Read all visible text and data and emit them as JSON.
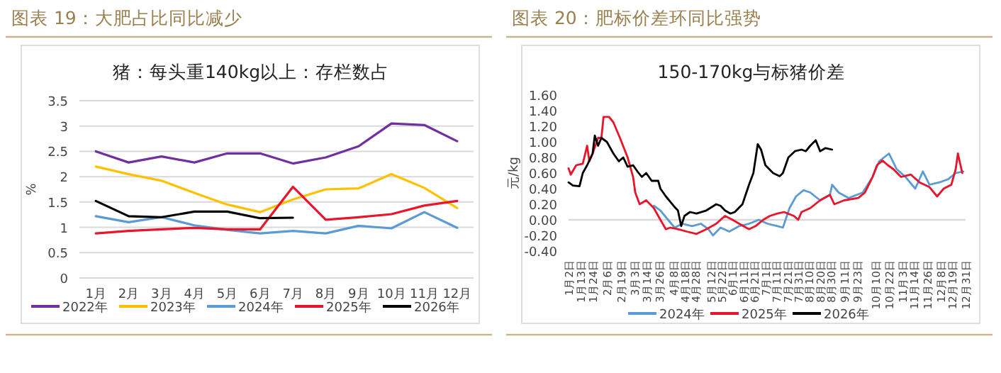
{
  "chart_data": [
    {
      "type": "line",
      "title": "图表 19：大肥占比同比减少",
      "subtitle": "猪：每头重140kg以上：存栏数占",
      "ylabel": "%",
      "categories": [
        "1月",
        "2月",
        "3月",
        "4月",
        "5月",
        "6月",
        "7月",
        "8月",
        "9月",
        "10月",
        "11月",
        "12月"
      ],
      "ylim": [
        0,
        3.5
      ],
      "yticks": [
        0,
        0.5,
        1,
        1.5,
        2,
        2.5,
        3,
        3.5
      ],
      "grid": "y",
      "legend": "bottom",
      "series": [
        {
          "name": "2022年",
          "color": "#7030a0",
          "values": [
            2.5,
            2.28,
            2.4,
            2.28,
            2.46,
            2.46,
            2.26,
            2.38,
            2.6,
            3.05,
            3.02,
            2.7
          ]
        },
        {
          "name": "2023年",
          "color": "#ffc000",
          "values": [
            2.2,
            2.05,
            1.92,
            1.68,
            1.45,
            1.3,
            1.55,
            1.75,
            1.77,
            2.05,
            1.78,
            1.38
          ]
        },
        {
          "name": "2024年",
          "color": "#5b9bd5",
          "values": [
            1.22,
            1.1,
            1.2,
            1.04,
            0.95,
            0.88,
            0.93,
            0.88,
            1.03,
            0.98,
            1.3,
            0.99
          ]
        },
        {
          "name": "2025年",
          "color": "#e8152b",
          "values": [
            0.88,
            0.93,
            0.96,
            0.99,
            0.96,
            0.96,
            1.8,
            1.15,
            1.2,
            1.26,
            1.43,
            1.52
          ]
        },
        {
          "name": "2026年",
          "color": "#000000",
          "values": [
            1.52,
            1.22,
            1.2,
            1.31,
            1.31,
            1.18,
            1.19,
            null,
            null,
            null,
            null,
            null
          ]
        }
      ]
    },
    {
      "type": "line",
      "title": "图表 20：肥标价差环同比强势",
      "subtitle": "150-170kg与标猪价差",
      "ylabel": "元/kg",
      "xlim": [
        "--01-02",
        "--12-31"
      ],
      "ylim": [
        -0.4,
        1.6
      ],
      "yticks": [
        {
          "value": -0.4,
          "label": "-0.40"
        },
        {
          "value": -0.2,
          "label": "-0.20"
        },
        {
          "value": 0,
          "label": "0.00"
        },
        {
          "value": 0.2,
          "label": "0.20"
        },
        {
          "value": 0.4,
          "label": "0.40"
        },
        {
          "value": 0.6,
          "label": "0.60"
        },
        {
          "value": 0.8,
          "label": "0.80"
        },
        {
          "value": 1.0,
          "label": "1.00"
        },
        {
          "value": 1.2,
          "label": "1.20"
        },
        {
          "value": 1.4,
          "label": "1.40"
        },
        {
          "value": 1.6,
          "label": "1.60"
        }
      ],
      "xticks": [
        {
          "value": "--01-02",
          "label": "1月2日"
        },
        {
          "value": "--01-13",
          "label": "1月13日"
        },
        {
          "value": "--01-24",
          "label": "1月24日"
        },
        {
          "value": "--02-06",
          "label": "2月6日"
        },
        {
          "value": "--02-19",
          "label": "2月19日"
        },
        {
          "value": "--03-03",
          "label": "3月3日"
        },
        {
          "value": "--03-14",
          "label": "3月14日"
        },
        {
          "value": "--03-26",
          "label": "3月26日"
        },
        {
          "value": "--04-08",
          "label": "4月8日"
        },
        {
          "value": "--04-18",
          "label": "4月18日"
        },
        {
          "value": "--04-28",
          "label": "4月28日"
        },
        {
          "value": "--05-12",
          "label": "5月12日"
        },
        {
          "value": "--05-22",
          "label": "5月22日"
        },
        {
          "value": "--06-01",
          "label": "6月1日"
        },
        {
          "value": "--06-11",
          "label": "6月11日"
        },
        {
          "value": "--06-21",
          "label": "6月21日"
        },
        {
          "value": "--07-01",
          "label": "7月1日"
        },
        {
          "value": "--07-11",
          "label": "7月11日"
        },
        {
          "value": "--07-21",
          "label": "7月21日"
        },
        {
          "value": "--07-31",
          "label": "7月31日"
        },
        {
          "value": "--08-10",
          "label": "8月10日"
        },
        {
          "value": "--08-20",
          "label": "8月20日"
        },
        {
          "value": "--08-30",
          "label": "8月30日"
        },
        {
          "value": "--09-11",
          "label": "9月11日"
        },
        {
          "value": "--09-23",
          "label": "9月23日"
        },
        {
          "value": "--10-10",
          "label": "10月10日"
        },
        {
          "value": "--10-22",
          "label": "10月22日"
        },
        {
          "value": "--11-03",
          "label": "11月3日"
        },
        {
          "value": "--11-14",
          "label": "11月14日"
        },
        {
          "value": "--11-26",
          "label": "11月26日"
        },
        {
          "value": "--12-08",
          "label": "12月8日"
        },
        {
          "value": "--12-19",
          "label": "12月19日"
        },
        {
          "value": "--12-31",
          "label": "12月31日"
        }
      ],
      "legend": "bottom",
      "series": [
        {
          "name": "2024年",
          "color": "#5b9bd5",
          "x": [
            "--03-21",
            "--03-27",
            "--04-03",
            "--04-09",
            "--04-16",
            "--04-25",
            "--05-03",
            "--05-10",
            "--05-14",
            "--05-21",
            "--05-29",
            "--06-07",
            "--06-16",
            "--06-25",
            "--07-03",
            "--07-12",
            "--07-17",
            "--07-23",
            "--07-29",
            "--08-05",
            "--08-11",
            "--08-20",
            "--08-29",
            "--08-31",
            "--09-06",
            "--09-15",
            "--09-28",
            "--10-07",
            "--10-13",
            "--10-22",
            "--10-29",
            "--11-06",
            "--11-15",
            "--11-22",
            "--11-28",
            "--12-07",
            "--12-15",
            "--12-22",
            "--12-29"
          ],
          "values": [
            0.18,
            0.12,
            0.0,
            -0.1,
            -0.05,
            -0.08,
            -0.05,
            -0.12,
            -0.2,
            -0.1,
            -0.15,
            -0.08,
            -0.05,
            0.0,
            -0.05,
            -0.08,
            -0.1,
            0.15,
            0.3,
            0.38,
            0.35,
            0.25,
            0.32,
            0.45,
            0.35,
            0.28,
            0.35,
            0.55,
            0.75,
            0.85,
            0.65,
            0.55,
            0.4,
            0.62,
            0.45,
            0.48,
            0.52,
            0.6,
            0.62
          ]
        },
        {
          "name": "2025年",
          "color": "#e8152b",
          "x": [
            "--01-02",
            "--01-04",
            "--01-09",
            "--01-15",
            "--01-19",
            "--01-21",
            "--01-24",
            "--01-29",
            "--02-01",
            "--02-03",
            "--02-08",
            "--02-12",
            "--02-18",
            "--02-25",
            "--03-02",
            "--03-04",
            "--03-08",
            "--03-14",
            "--03-21",
            "--03-27",
            "--04-01",
            "--04-05",
            "--04-12",
            "--04-20",
            "--04-29",
            "--05-08",
            "--05-17",
            "--05-25",
            "--06-01",
            "--06-07",
            "--06-16",
            "--06-22",
            "--06-29",
            "--07-05",
            "--07-12",
            "--07-18",
            "--07-27",
            "--07-31",
            "--08-03",
            "--08-11",
            "--08-20",
            "--08-29",
            "--09-02",
            "--09-11",
            "--09-24",
            "--09-30",
            "--10-07",
            "--10-11",
            "--10-16",
            "--10-21",
            "--10-26",
            "--11-02",
            "--11-11",
            "--11-19",
            "--11-28",
            "--12-05",
            "--12-11",
            "--12-18",
            "--12-22",
            "--12-24",
            "--12-28"
          ],
          "values": [
            0.66,
            0.58,
            0.7,
            0.72,
            0.95,
            0.75,
            0.85,
            1.05,
            1.05,
            1.32,
            1.32,
            1.25,
            1.05,
            0.8,
            0.55,
            0.35,
            0.2,
            0.25,
            0.15,
            0.0,
            -0.12,
            -0.1,
            -0.12,
            -0.15,
            -0.18,
            -0.12,
            -0.05,
            0.05,
            0.0,
            -0.05,
            -0.12,
            -0.08,
            0.0,
            0.05,
            0.08,
            0.1,
            0.05,
            0.0,
            0.1,
            0.15,
            0.25,
            0.32,
            0.2,
            0.25,
            0.28,
            0.35,
            0.55,
            0.7,
            0.76,
            0.7,
            0.65,
            0.55,
            0.58,
            0.48,
            0.42,
            0.3,
            0.4,
            0.45,
            0.65,
            0.85,
            0.6
          ]
        },
        {
          "name": "2026年",
          "color": "#000000",
          "x": [
            "--01-02",
            "--01-06",
            "--01-12",
            "--01-15",
            "--01-19",
            "--01-24",
            "--01-26",
            "--01-29",
            "--02-01",
            "--02-06",
            "--02-12",
            "--02-17",
            "--02-21",
            "--02-25",
            "--03-02",
            "--03-06",
            "--03-10",
            "--03-14",
            "--03-19",
            "--03-25",
            "--03-27",
            "--04-01",
            "--04-08",
            "--04-12",
            "--04-15",
            "--04-18",
            "--04-23",
            "--04-29",
            "--05-08",
            "--05-17",
            "--05-21",
            "--05-25",
            "--05-30",
            "--06-03",
            "--06-10",
            "--06-16",
            "--06-20",
            "--06-24",
            "--06-27",
            "--07-01",
            "--07-08",
            "--07-14",
            "--07-17",
            "--07-22",
            "--07-28",
            "--08-03",
            "--08-07",
            "--08-11",
            "--08-16",
            "--08-20",
            "--08-25",
            "--08-31"
          ],
          "values": [
            0.48,
            0.44,
            0.43,
            0.6,
            0.7,
            0.85,
            1.08,
            0.95,
            1.05,
            1.0,
            0.85,
            0.75,
            0.8,
            0.68,
            0.7,
            0.62,
            0.55,
            0.6,
            0.5,
            0.5,
            0.4,
            0.3,
            0.18,
            0.12,
            -0.08,
            0.05,
            0.1,
            0.08,
            0.12,
            0.2,
            0.18,
            0.12,
            0.08,
            0.1,
            0.2,
            0.45,
            0.6,
            0.97,
            0.9,
            0.7,
            0.6,
            0.56,
            0.6,
            0.8,
            0.88,
            0.9,
            0.88,
            0.95,
            1.02,
            0.88,
            0.92,
            0.9
          ]
        }
      ]
    }
  ]
}
